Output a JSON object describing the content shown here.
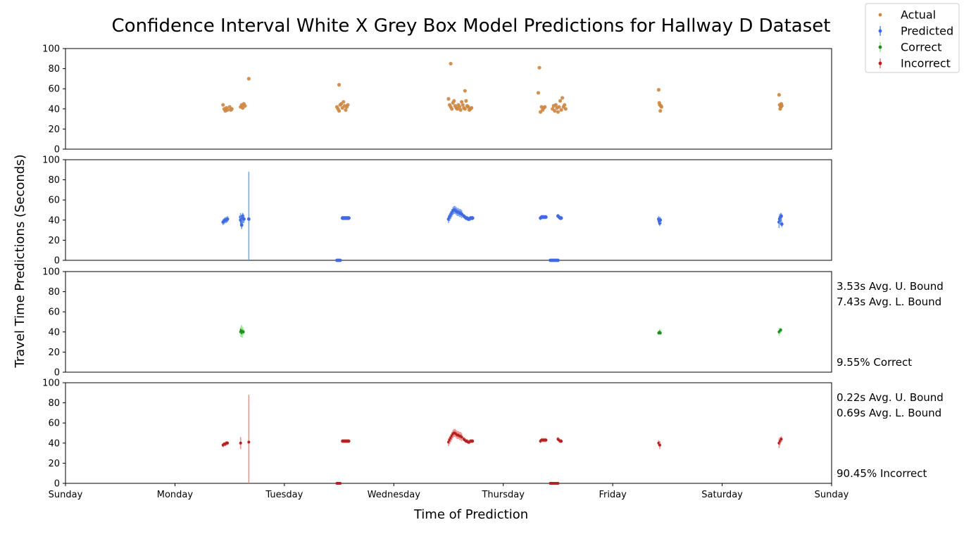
{
  "chart_data": {
    "type": "scatter",
    "title": "Confidence Interval White X Grey Box Model Predictions for Hallway D Dataset",
    "xlabel": "Time of Prediction",
    "ylabel": "Travel Time Predictions (Seconds)",
    "x_tick_labels": [
      "Sunday",
      "Monday",
      "Tuesday",
      "Wednesday",
      "Thursday",
      "Friday",
      "Saturday",
      "Sunday"
    ],
    "xlim_days": [
      0,
      7
    ],
    "ylim": [
      0,
      100
    ],
    "y_ticks": [
      "0",
      "20",
      "40",
      "60",
      "80",
      "100"
    ],
    "grid": false,
    "legend_position": "top-right",
    "legend": [
      "Actual",
      "Predicted",
      "Correct",
      "Incorrect"
    ],
    "colors": {
      "actual": "#cd853f",
      "predicted": "#4169e1",
      "predicted_bar": "#6495ed",
      "correct": "#228b22",
      "correct_bar": "#90ee90",
      "incorrect": "#b22222",
      "incorrect_bar": "#f08080"
    },
    "panels": [
      {
        "name": "Actual",
        "series": "actual",
        "points": [
          [
            1.44,
            44
          ],
          [
            1.45,
            40
          ],
          [
            1.46,
            38
          ],
          [
            1.47,
            41
          ],
          [
            1.48,
            39
          ],
          [
            1.5,
            42
          ],
          [
            1.51,
            39
          ],
          [
            1.52,
            40
          ],
          [
            1.6,
            42
          ],
          [
            1.61,
            44
          ],
          [
            1.62,
            41
          ],
          [
            1.63,
            45
          ],
          [
            1.64,
            43
          ],
          [
            1.675,
            70
          ],
          [
            2.48,
            42
          ],
          [
            2.49,
            40
          ],
          [
            2.5,
            38
          ],
          [
            2.51,
            44
          ],
          [
            2.52,
            45
          ],
          [
            2.53,
            41
          ],
          [
            2.54,
            47
          ],
          [
            2.55,
            43
          ],
          [
            2.56,
            39
          ],
          [
            2.57,
            42
          ],
          [
            2.58,
            44
          ],
          [
            2.5,
            64
          ],
          [
            3.5,
            50
          ],
          [
            3.51,
            44
          ],
          [
            3.52,
            42
          ],
          [
            3.53,
            40
          ],
          [
            3.54,
            46
          ],
          [
            3.55,
            48
          ],
          [
            3.56,
            43
          ],
          [
            3.57,
            41
          ],
          [
            3.58,
            40
          ],
          [
            3.59,
            44
          ],
          [
            3.6,
            42
          ],
          [
            3.61,
            39
          ],
          [
            3.62,
            47
          ],
          [
            3.63,
            44
          ],
          [
            3.64,
            41
          ],
          [
            3.65,
            40
          ],
          [
            3.66,
            48
          ],
          [
            3.67,
            43
          ],
          [
            3.68,
            42
          ],
          [
            3.69,
            39
          ],
          [
            3.7,
            40
          ],
          [
            3.71,
            41
          ],
          [
            3.52,
            85
          ],
          [
            3.65,
            58
          ],
          [
            4.32,
            56
          ],
          [
            4.33,
            81
          ],
          [
            4.34,
            37
          ],
          [
            4.35,
            42
          ],
          [
            4.36,
            39
          ],
          [
            4.37,
            41
          ],
          [
            4.38,
            42
          ],
          [
            4.45,
            40
          ],
          [
            4.46,
            43
          ],
          [
            4.47,
            38
          ],
          [
            4.48,
            44
          ],
          [
            4.49,
            41
          ],
          [
            4.5,
            37
          ],
          [
            4.51,
            42
          ],
          [
            4.52,
            48
          ],
          [
            4.53,
            39
          ],
          [
            4.54,
            51
          ],
          [
            4.55,
            42
          ],
          [
            4.56,
            44
          ],
          [
            4.57,
            40
          ],
          [
            5.42,
            59
          ],
          [
            5.425,
            46
          ],
          [
            5.43,
            44
          ],
          [
            5.435,
            38
          ],
          [
            5.44,
            43
          ],
          [
            5.445,
            42
          ],
          [
            6.52,
            54
          ],
          [
            6.525,
            44
          ],
          [
            6.53,
            40
          ],
          [
            6.535,
            42
          ],
          [
            6.54,
            45
          ],
          [
            6.545,
            43
          ]
        ]
      },
      {
        "name": "Predicted",
        "series": "predicted",
        "points": [
          [
            1.44,
            38,
            3
          ],
          [
            1.45,
            39,
            3
          ],
          [
            1.46,
            40,
            3
          ],
          [
            1.47,
            40,
            3
          ],
          [
            1.48,
            41,
            3
          ],
          [
            1.6,
            43,
            4
          ],
          [
            1.6,
            40,
            5
          ],
          [
            1.61,
            38,
            6
          ],
          [
            1.61,
            35,
            4
          ],
          [
            1.62,
            42,
            5
          ],
          [
            1.62,
            44,
            3
          ],
          [
            1.63,
            41,
            4
          ],
          [
            1.675,
            41,
            47
          ],
          [
            2.53,
            42,
            2
          ],
          [
            2.54,
            42,
            2
          ],
          [
            2.55,
            42,
            2
          ],
          [
            2.56,
            42,
            2
          ],
          [
            2.57,
            42,
            2
          ],
          [
            2.58,
            42,
            2
          ],
          [
            2.59,
            42,
            2
          ],
          [
            2.48,
            0,
            1
          ],
          [
            2.49,
            0,
            1
          ],
          [
            2.5,
            0,
            1
          ],
          [
            2.51,
            0,
            1
          ],
          [
            3.5,
            41,
            4
          ],
          [
            3.51,
            43,
            4
          ],
          [
            3.52,
            45,
            4
          ],
          [
            3.53,
            47,
            4
          ],
          [
            3.54,
            49,
            4
          ],
          [
            3.55,
            50,
            4
          ],
          [
            3.56,
            50,
            4
          ],
          [
            3.57,
            49,
            4
          ],
          [
            3.58,
            48,
            4
          ],
          [
            3.59,
            48,
            4
          ],
          [
            3.6,
            47,
            4
          ],
          [
            3.61,
            47,
            4
          ],
          [
            3.62,
            46,
            4
          ],
          [
            3.64,
            44,
            2
          ],
          [
            3.65,
            43,
            2
          ],
          [
            3.66,
            42,
            2
          ],
          [
            3.67,
            42,
            2
          ],
          [
            3.68,
            41,
            2
          ],
          [
            3.69,
            41,
            2
          ],
          [
            3.7,
            42,
            2
          ],
          [
            3.71,
            42,
            2
          ],
          [
            3.72,
            42,
            2
          ],
          [
            4.34,
            42,
            2
          ],
          [
            4.35,
            43,
            2
          ],
          [
            4.36,
            43,
            2
          ],
          [
            4.37,
            43,
            2
          ],
          [
            4.38,
            43,
            2
          ],
          [
            4.39,
            43,
            2
          ],
          [
            4.43,
            0,
            1
          ],
          [
            4.44,
            0,
            1
          ],
          [
            4.45,
            0,
            1
          ],
          [
            4.46,
            0,
            1
          ],
          [
            4.47,
            0,
            1
          ],
          [
            4.48,
            0,
            1
          ],
          [
            4.49,
            0,
            1
          ],
          [
            4.5,
            0,
            1
          ],
          [
            4.5,
            44,
            2
          ],
          [
            4.51,
            43,
            2
          ],
          [
            4.52,
            42,
            2
          ],
          [
            4.53,
            42,
            2
          ],
          [
            5.42,
            41,
            3
          ],
          [
            5.425,
            39,
            4
          ],
          [
            5.43,
            37,
            3
          ],
          [
            5.435,
            40,
            3
          ],
          [
            6.52,
            38,
            6
          ],
          [
            6.525,
            41,
            5
          ],
          [
            6.53,
            40,
            4
          ],
          [
            6.535,
            43,
            4
          ],
          [
            6.54,
            44,
            3
          ],
          [
            6.545,
            36,
            3
          ]
        ]
      },
      {
        "name": "Correct",
        "series": "correct",
        "stat_upper": "3.53s Avg. U. Bound",
        "stat_lower": "7.43s Avg. L. Bound",
        "stat_pct": "9.55% Correct",
        "points": [
          [
            1.6,
            40,
            5
          ],
          [
            1.605,
            42,
            4
          ],
          [
            1.61,
            41,
            6
          ],
          [
            1.615,
            39,
            5
          ],
          [
            1.62,
            41,
            4
          ],
          [
            1.625,
            40,
            3
          ],
          [
            5.42,
            39,
            2
          ],
          [
            5.43,
            40,
            3
          ],
          [
            5.435,
            39,
            2
          ],
          [
            6.52,
            40,
            4
          ],
          [
            6.53,
            41,
            3
          ],
          [
            6.535,
            42,
            2
          ]
        ]
      },
      {
        "name": "Incorrect",
        "series": "incorrect",
        "stat_upper": "0.22s Avg. U. Bound",
        "stat_lower": "0.69s Avg. L. Bound",
        "stat_pct": "90.45% Incorrect",
        "points": [
          [
            1.44,
            38,
            2
          ],
          [
            1.45,
            39,
            2
          ],
          [
            1.46,
            39,
            2
          ],
          [
            1.47,
            40,
            2
          ],
          [
            1.48,
            40,
            2
          ],
          [
            1.6,
            40,
            6
          ],
          [
            1.675,
            41,
            47
          ],
          [
            2.53,
            42,
            2
          ],
          [
            2.54,
            42,
            2
          ],
          [
            2.55,
            42,
            2
          ],
          [
            2.56,
            42,
            2
          ],
          [
            2.57,
            42,
            2
          ],
          [
            2.58,
            42,
            2
          ],
          [
            2.59,
            42,
            2
          ],
          [
            2.48,
            0,
            1
          ],
          [
            2.49,
            0,
            1
          ],
          [
            2.5,
            0,
            1
          ],
          [
            2.51,
            0,
            1
          ],
          [
            3.5,
            41,
            4
          ],
          [
            3.51,
            43,
            4
          ],
          [
            3.52,
            45,
            4
          ],
          [
            3.53,
            47,
            4
          ],
          [
            3.54,
            49,
            4
          ],
          [
            3.55,
            50,
            4
          ],
          [
            3.56,
            50,
            4
          ],
          [
            3.57,
            49,
            4
          ],
          [
            3.58,
            48,
            4
          ],
          [
            3.59,
            48,
            4
          ],
          [
            3.6,
            47,
            4
          ],
          [
            3.61,
            47,
            4
          ],
          [
            3.62,
            46,
            4
          ],
          [
            3.64,
            44,
            2
          ],
          [
            3.65,
            43,
            2
          ],
          [
            3.66,
            42,
            2
          ],
          [
            3.67,
            42,
            2
          ],
          [
            3.68,
            41,
            2
          ],
          [
            3.69,
            41,
            2
          ],
          [
            3.7,
            42,
            2
          ],
          [
            3.71,
            42,
            2
          ],
          [
            3.72,
            42,
            2
          ],
          [
            4.34,
            42,
            2
          ],
          [
            4.35,
            43,
            2
          ],
          [
            4.36,
            43,
            2
          ],
          [
            4.37,
            43,
            2
          ],
          [
            4.38,
            43,
            2
          ],
          [
            4.39,
            43,
            2
          ],
          [
            4.43,
            0,
            1
          ],
          [
            4.44,
            0,
            1
          ],
          [
            4.45,
            0,
            1
          ],
          [
            4.46,
            0,
            1
          ],
          [
            4.47,
            0,
            1
          ],
          [
            4.48,
            0,
            1
          ],
          [
            4.49,
            0,
            1
          ],
          [
            4.5,
            0,
            1
          ],
          [
            4.5,
            44,
            2
          ],
          [
            4.51,
            43,
            2
          ],
          [
            4.52,
            42,
            2
          ],
          [
            4.53,
            42,
            2
          ],
          [
            5.42,
            40,
            3
          ],
          [
            5.43,
            38,
            4
          ],
          [
            6.52,
            40,
            5
          ],
          [
            6.53,
            42,
            4
          ],
          [
            6.54,
            44,
            3
          ]
        ]
      }
    ]
  }
}
